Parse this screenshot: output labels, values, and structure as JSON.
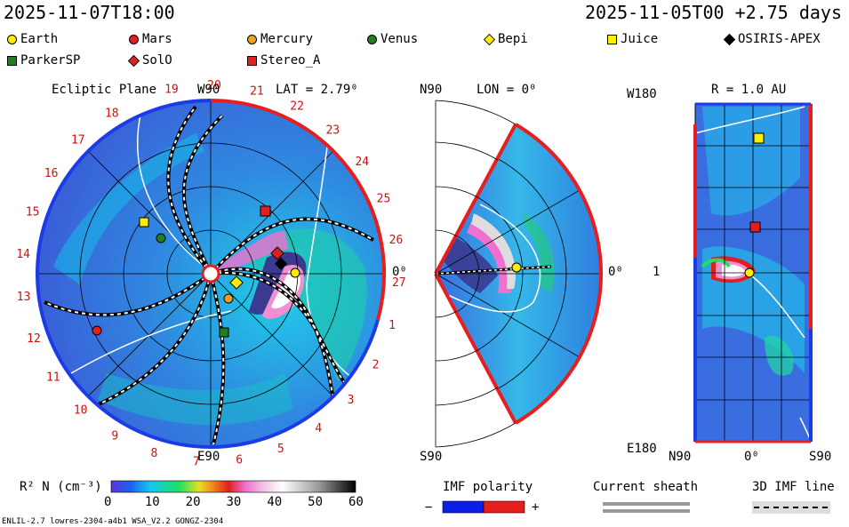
{
  "header": {
    "left": "2025-11-07T18:00",
    "right": "2025-11-05T00 +2.75 days"
  },
  "legend": [
    {
      "name": "Earth",
      "shape": "circle",
      "color": "#ffee00"
    },
    {
      "name": "Mars",
      "shape": "circle",
      "color": "#e02020"
    },
    {
      "name": "Mercury",
      "shape": "circle",
      "color": "#f0a020"
    },
    {
      "name": "Venus",
      "shape": "circle",
      "color": "#208020"
    },
    {
      "name": "Bepi",
      "shape": "diamond",
      "color": "#ffee00"
    },
    {
      "name": "Juice",
      "shape": "square",
      "color": "#ffee00"
    },
    {
      "name": "OSIRIS-APEX",
      "shape": "diamond",
      "color": "#000000"
    },
    {
      "name": "ParkerSP",
      "shape": "square",
      "color": "#208020"
    },
    {
      "name": "SolO",
      "shape": "diamond",
      "color": "#e02020"
    },
    {
      "name": "Stereo_A",
      "shape": "square",
      "color": "#e02020"
    }
  ],
  "panels": {
    "ecliptic": {
      "title": "Ecliptic Plane",
      "top_label": "W90",
      "lat": "LAT = 2.79⁰",
      "bottom_label": "E90",
      "right_label": "0⁰"
    },
    "meridional": {
      "top_label": "N90",
      "lon": "LON = 0⁰",
      "bottom_label": "S90",
      "right_label": "0⁰"
    },
    "radial": {
      "r_label": "R = 1.0 AU",
      "top_left": "W180",
      "mid_left": "1",
      "bottom_left": "E180",
      "x_left": "N90",
      "x_mid": "0⁰",
      "x_right": "S90"
    }
  },
  "carrington_ticks": [
    "19",
    "20",
    "21",
    "22",
    "23",
    "24",
    "25",
    "26",
    "27",
    "1",
    "2",
    "3",
    "4",
    "5",
    "6",
    "7",
    "8",
    "9",
    "10",
    "11",
    "12",
    "13",
    "14",
    "15",
    "16",
    "17",
    "18"
  ],
  "colorbar": {
    "label": "R² N (cm⁻³)",
    "ticks": [
      "0",
      "10",
      "20",
      "30",
      "40",
      "50",
      "60"
    ]
  },
  "imf": {
    "title": "IMF polarity",
    "minus": "−",
    "plus": "+",
    "neg_color": "#0a1ee6",
    "pos_color": "#e61e1e"
  },
  "current_sheath": {
    "title": "Current sheath"
  },
  "imf_line": {
    "title": "3D IMF line"
  },
  "footer": "ENLIL-2.7 lowres-2304-a4b1 WSA_V2.2 GONGZ-2304",
  "chart_data": {
    "type": "other",
    "description_fields": {
      "quantity": "R² N (cm⁻³)",
      "scale_range": [
        0,
        60
      ],
      "panels": [
        "Ecliptic Plane",
        "LON = 0⁰",
        "R = 1.0 AU"
      ],
      "bodies_shown": [
        "Earth",
        "Mars",
        "Mercury",
        "Venus",
        "Bepi",
        "Juice",
        "OSIRIS-APEX",
        "ParkerSP",
        "SolO",
        "Stereo_A"
      ]
    }
  }
}
